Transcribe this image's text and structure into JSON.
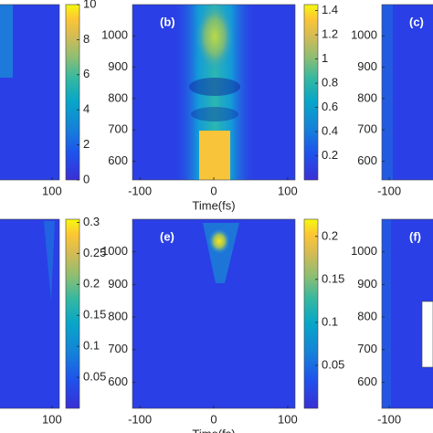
{
  "chart_data": [
    {
      "type": "heatmap",
      "xlim": [
        -110,
        110
      ],
      "xticks": [
        100
      ],
      "colorbar": {
        "lim": [
          0,
          10
        ],
        "ticks": [
          0,
          2,
          4,
          6,
          8,
          10
        ]
      }
    },
    {
      "type": "heatmap",
      "label": "(b)",
      "xlabel": "Time(fs)",
      "xlim": [
        -110,
        110
      ],
      "ylim": [
        540,
        1100
      ],
      "xticks": [
        -100,
        0,
        100
      ],
      "yticks": [
        600,
        700,
        800,
        900,
        1000
      ],
      "colorbar": {
        "lim": [
          0,
          1.45
        ],
        "ticks": [
          0.2,
          0.4,
          0.6,
          0.8,
          1,
          1.2,
          1.4
        ]
      }
    },
    {
      "type": "heatmap",
      "label": "(c)",
      "xlim": [
        -110,
        110
      ],
      "ylim": [
        540,
        1100
      ],
      "xticks": [
        -100
      ],
      "yticks": [
        600,
        700,
        800,
        900,
        1000
      ]
    },
    {
      "type": "heatmap",
      "xlim": [
        -110,
        110
      ],
      "xticks": [
        100
      ],
      "colorbar": {
        "lim": [
          0,
          0.305
        ],
        "ticks": [
          0.05,
          0.1,
          0.15,
          0.2,
          0.25,
          0.3
        ]
      }
    },
    {
      "type": "heatmap",
      "label": "(e)",
      "xlabel": "Time(fs)",
      "xlim": [
        -110,
        110
      ],
      "ylim": [
        520,
        1100
      ],
      "xticks": [
        -100,
        0,
        100
      ],
      "yticks": [
        600,
        700,
        800,
        900,
        1000
      ],
      "colorbar": {
        "lim": [
          0,
          0.22
        ],
        "ticks": [
          0.05,
          0.1,
          0.15,
          0.2
        ]
      }
    },
    {
      "type": "heatmap",
      "label": "(f)",
      "xlim": [
        -110,
        110
      ],
      "ylim": [
        520,
        1100
      ],
      "xticks": [
        -100
      ],
      "yticks": [
        600,
        700,
        800,
        900,
        1000
      ]
    }
  ]
}
